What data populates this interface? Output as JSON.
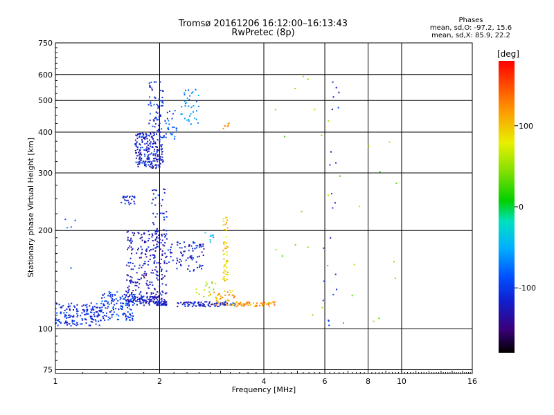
{
  "header": {
    "title": "Tromsø 20161206 16:12:00–16:13:43",
    "subtitle": "RwPretec (8p)"
  },
  "stats": {
    "heading": "Phases",
    "line_o": "mean, sd,O: -97.2, 15.6",
    "line_x": "mean, sd,X: 85.9, 22.2"
  },
  "colorbar": {
    "label": "[deg]",
    "ticks": [
      "100",
      "0",
      "-100"
    ],
    "range": [
      -180,
      180
    ]
  },
  "chart_data": {
    "type": "scatter",
    "title": "Tromsø 20161206 16:12:00–16:13:43",
    "subtitle": "RwPretec (8p)",
    "xlabel": "Frequency [MHz]",
    "ylabel": "Stationary phase Virtual Height [km]",
    "x_scale": "log",
    "y_scale": "log",
    "xlim": [
      1,
      16
    ],
    "ylim": [
      73,
      750
    ],
    "x_ticks": [
      "1",
      "2",
      "4",
      "6",
      "8",
      "10",
      "16"
    ],
    "y_ticks": [
      "75",
      "100",
      "200",
      "300",
      "400",
      "500",
      "600",
      "750"
    ],
    "grid": true,
    "color_scale": "phase [deg], -180 to 180",
    "series": [
      {
        "clusters": [
          {
            "f": [
              1.0,
              1.35
            ],
            "h": [
              102,
              120
            ],
            "phase": -110,
            "n": 160
          },
          {
            "f": [
              1.35,
              1.7
            ],
            "h": [
              106,
              130
            ],
            "phase": -100,
            "n": 140
          },
          {
            "f": [
              1.6,
              1.95
            ],
            "h": [
              118,
              126
            ],
            "phase": -120,
            "n": 80
          },
          {
            "f": [
              1.95,
              2.1
            ],
            "h": [
              118,
              122
            ],
            "phase": -118,
            "n": 40
          },
          {
            "f": [
              2.25,
              3.3
            ],
            "h": [
              117,
              121
            ],
            "phase": -118,
            "n": 90
          },
          {
            "f": [
              1.6,
              2.1
            ],
            "h": [
              122,
              200
            ],
            "phase": -125,
            "n": 260
          },
          {
            "f": [
              1.9,
              2.1
            ],
            "h": [
              180,
              270
            ],
            "phase": -120,
            "n": 40
          },
          {
            "f": [
              2.1,
              2.7
            ],
            "h": [
              150,
              185
            ],
            "phase": -115,
            "n": 80
          },
          {
            "f": [
              1.55,
              1.7
            ],
            "h": [
              240,
              255
            ],
            "phase": -110,
            "n": 25
          },
          {
            "f": [
              1.7,
              2.05
            ],
            "h": [
              310,
              400
            ],
            "phase": -120,
            "n": 220
          },
          {
            "f": [
              1.85,
              2.05
            ],
            "h": [
              400,
              570
            ],
            "phase": -110,
            "n": 60
          },
          {
            "f": [
              2.3,
              2.6
            ],
            "h": [
              420,
              540
            ],
            "phase": -70,
            "n": 35
          },
          {
            "f": [
              2.05,
              2.25
            ],
            "h": [
              380,
              470
            ],
            "phase": -90,
            "n": 30
          },
          {
            "f": [
              2.7,
              2.9
            ],
            "h": [
              180,
              200
            ],
            "phase": -40,
            "n": 8
          },
          {
            "f": [
              3.05,
              3.15
            ],
            "h": [
              140,
              220
            ],
            "phase": 95,
            "n": 55
          },
          {
            "f": [
              2.8,
              3.3
            ],
            "h": [
              118,
              132
            ],
            "phase": 110,
            "n": 45
          },
          {
            "f": [
              3.3,
              4.3
            ],
            "h": [
              117,
              121
            ],
            "phase": 118,
            "n": 60
          },
          {
            "f": [
              2.55,
              3.0
            ],
            "h": [
              125,
              140
            ],
            "phase": 60,
            "n": 15
          },
          {
            "f": [
              3.05,
              3.2
            ],
            "h": [
              410,
              430
            ],
            "phase": 120,
            "n": 6
          },
          {
            "f": [
              6.2,
              6.5
            ],
            "h": [
              220,
              360
            ],
            "phase": -120,
            "n": 6
          },
          {
            "f": [
              6.3,
              6.6
            ],
            "h": [
              450,
              600
            ],
            "phase": -115,
            "n": 6
          },
          {
            "f": [
              5.8,
              6.6
            ],
            "h": [
              100,
              200
            ],
            "phase": -100,
            "n": 10
          },
          {
            "f": [
              4.2,
              10.0
            ],
            "h": [
              90,
              610
            ],
            "phase": 40,
            "n": 30
          },
          {
            "f": [
              1.0,
              1.2
            ],
            "h": [
              150,
              225
            ],
            "phase": -90,
            "n": 5
          }
        ]
      }
    ]
  }
}
